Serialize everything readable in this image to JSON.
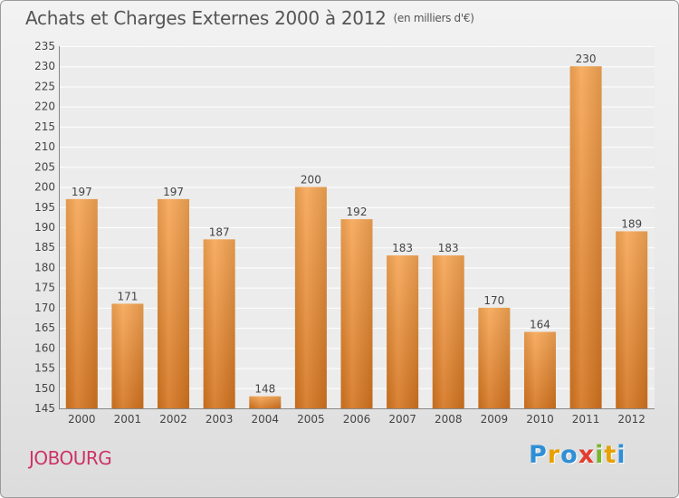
{
  "title": "Achats et Charges Externes 2000 à 2012",
  "unit": "(en milliers d'€)",
  "commune": "JOBOURG",
  "brand": {
    "letters": [
      {
        "ch": "P",
        "color": "#2f8fd6"
      },
      {
        "ch": "r",
        "color": "#e8a000"
      },
      {
        "ch": "o",
        "color": "#2f8fd6"
      },
      {
        "ch": "x",
        "color": "#e23d2e"
      },
      {
        "ch": "i",
        "color": "#7ab52b"
      },
      {
        "ch": "t",
        "color": "#e8a000"
      },
      {
        "ch": "i",
        "color": "#2f8fd6"
      }
    ]
  },
  "colors": {
    "bar_top": "#f6a654",
    "bar_bottom": "#d4741f",
    "commune": "#cc3366"
  },
  "chart_data": {
    "type": "bar",
    "categories": [
      "2000",
      "2001",
      "2002",
      "2003",
      "2004",
      "2005",
      "2006",
      "2007",
      "2008",
      "2009",
      "2010",
      "2011",
      "2012"
    ],
    "values": [
      197,
      171,
      197,
      187,
      148,
      200,
      192,
      183,
      183,
      170,
      164,
      230,
      189
    ],
    "ylim": [
      145,
      235
    ],
    "yticks": [
      145,
      150,
      155,
      160,
      165,
      170,
      175,
      180,
      185,
      190,
      195,
      200,
      205,
      210,
      215,
      220,
      225,
      230,
      235
    ],
    "grid": true,
    "title": "Achats et Charges Externes 2000 à 2012",
    "xlabel": "",
    "ylabel": ""
  }
}
